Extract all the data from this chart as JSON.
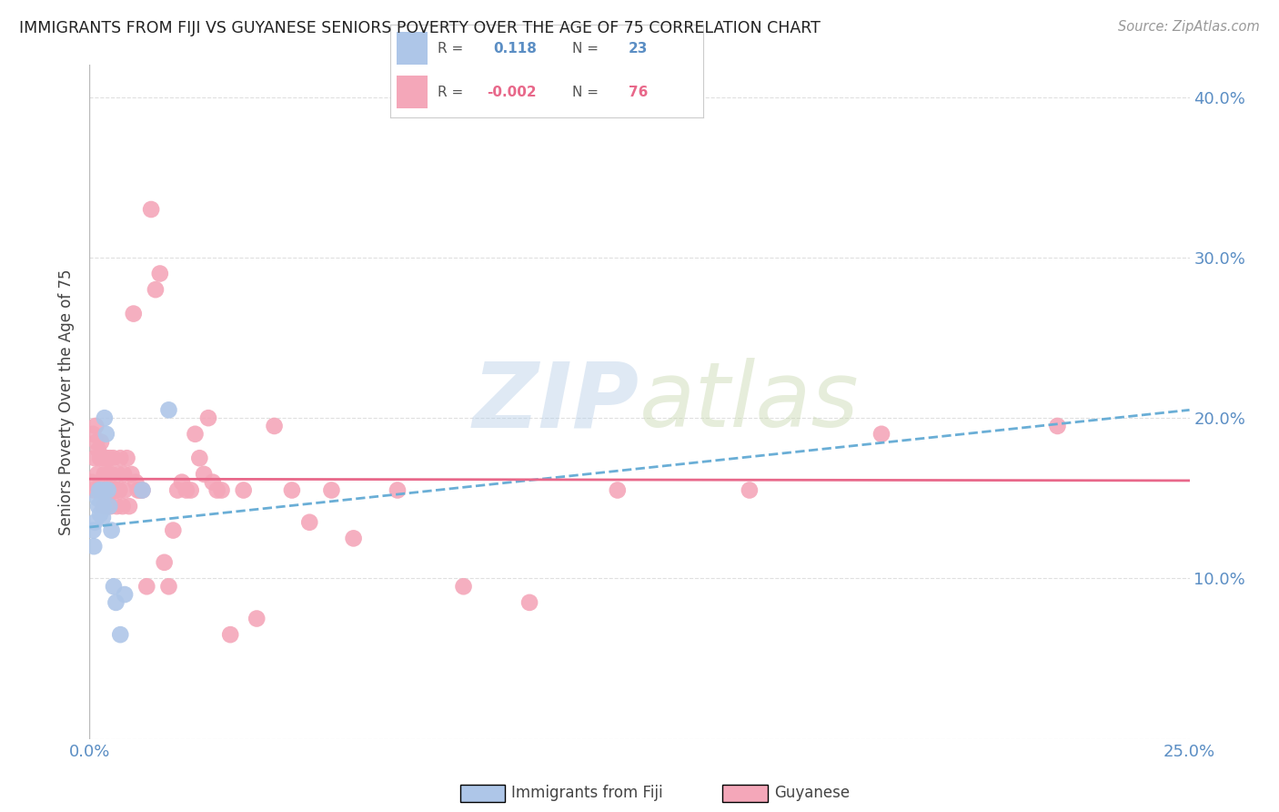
{
  "title": "IMMIGRANTS FROM FIJI VS GUYANESE SENIORS POVERTY OVER THE AGE OF 75 CORRELATION CHART",
  "source": "Source: ZipAtlas.com",
  "ylabel": "Seniors Poverty Over the Age of 75",
  "xlim": [
    0.0,
    0.25
  ],
  "ylim": [
    0.0,
    0.42
  ],
  "x_ticks": [
    0.0,
    0.05,
    0.1,
    0.15,
    0.2,
    0.25
  ],
  "x_tick_labels": [
    "0.0%",
    "",
    "",
    "",
    "",
    "25.0%"
  ],
  "y_ticks": [
    0.0,
    0.1,
    0.2,
    0.3,
    0.4
  ],
  "y_tick_labels": [
    "",
    "10.0%",
    "20.0%",
    "30.0%",
    "40.0%"
  ],
  "fiji_R": 0.118,
  "fiji_N": 23,
  "guyanese_R": -0.002,
  "guyanese_N": 76,
  "fiji_color": "#aec6e8",
  "guyanese_color": "#f4a7b9",
  "fiji_line_color": "#6aaed6",
  "guyanese_line_color": "#e8688a",
  "watermark_zip": "ZIP",
  "watermark_atlas": "atlas",
  "fiji_x": [
    0.0008,
    0.001,
    0.0012,
    0.0018,
    0.002,
    0.0022,
    0.0024,
    0.0026,
    0.0028,
    0.003,
    0.0032,
    0.0034,
    0.0036,
    0.0038,
    0.0042,
    0.0045,
    0.005,
    0.0055,
    0.006,
    0.007,
    0.008,
    0.012,
    0.018
  ],
  "fiji_y": [
    0.13,
    0.12,
    0.135,
    0.15,
    0.145,
    0.155,
    0.14,
    0.155,
    0.148,
    0.138,
    0.145,
    0.2,
    0.155,
    0.19,
    0.155,
    0.145,
    0.13,
    0.095,
    0.085,
    0.065,
    0.09,
    0.155,
    0.205
  ],
  "guyanese_x": [
    0.0005,
    0.0008,
    0.001,
    0.0012,
    0.0014,
    0.0016,
    0.0018,
    0.002,
    0.0022,
    0.0024,
    0.0026,
    0.0028,
    0.003,
    0.0032,
    0.0034,
    0.0036,
    0.0038,
    0.004,
    0.0042,
    0.0044,
    0.0046,
    0.0048,
    0.005,
    0.0052,
    0.0054,
    0.0056,
    0.0058,
    0.006,
    0.0062,
    0.0065,
    0.0068,
    0.007,
    0.0075,
    0.0078,
    0.008,
    0.0085,
    0.009,
    0.0095,
    0.01,
    0.0105,
    0.011,
    0.0115,
    0.012,
    0.013,
    0.014,
    0.015,
    0.016,
    0.017,
    0.018,
    0.019,
    0.02,
    0.021,
    0.022,
    0.023,
    0.024,
    0.025,
    0.026,
    0.027,
    0.028,
    0.029,
    0.03,
    0.032,
    0.035,
    0.038,
    0.042,
    0.046,
    0.05,
    0.055,
    0.06,
    0.07,
    0.085,
    0.1,
    0.12,
    0.15,
    0.18,
    0.22
  ],
  "guyanese_y": [
    0.16,
    0.19,
    0.155,
    0.175,
    0.195,
    0.185,
    0.165,
    0.18,
    0.155,
    0.175,
    0.185,
    0.155,
    0.175,
    0.145,
    0.165,
    0.155,
    0.175,
    0.145,
    0.165,
    0.155,
    0.175,
    0.145,
    0.165,
    0.155,
    0.175,
    0.155,
    0.155,
    0.155,
    0.145,
    0.165,
    0.155,
    0.175,
    0.145,
    0.165,
    0.155,
    0.175,
    0.145,
    0.165,
    0.265,
    0.16,
    0.155,
    0.155,
    0.155,
    0.095,
    0.33,
    0.28,
    0.29,
    0.11,
    0.095,
    0.13,
    0.155,
    0.16,
    0.155,
    0.155,
    0.19,
    0.175,
    0.165,
    0.2,
    0.16,
    0.155,
    0.155,
    0.065,
    0.155,
    0.075,
    0.195,
    0.155,
    0.135,
    0.155,
    0.125,
    0.155,
    0.095,
    0.085,
    0.155,
    0.155,
    0.19,
    0.195
  ],
  "fiji_line_x": [
    0.0,
    0.25
  ],
  "fiji_line_y": [
    0.132,
    0.205
  ],
  "guyanese_line_x": [
    0.0,
    0.25
  ],
  "guyanese_line_y": [
    0.162,
    0.161
  ]
}
